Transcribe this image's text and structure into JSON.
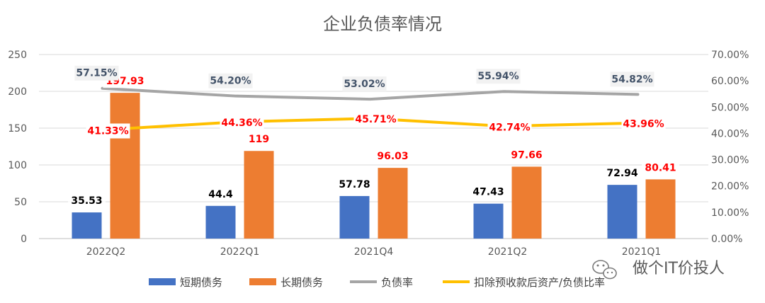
{
  "chart_data": {
    "type": "bar",
    "title": "企业负债率情况",
    "categories": [
      "2022Q2",
      "2022Q1",
      "2021Q4",
      "2021Q2",
      "2021Q1"
    ],
    "y_left": {
      "ylim": [
        0,
        250
      ],
      "ticks": [
        "0",
        "50",
        "100",
        "150",
        "200",
        "250"
      ]
    },
    "y_right": {
      "ylim": [
        0,
        70
      ],
      "ticks": [
        "0.00%",
        "10.00%",
        "20.00%",
        "30.00%",
        "40.00%",
        "50.00%",
        "60.00%",
        "70.00%"
      ]
    },
    "series": [
      {
        "name": "短期债务",
        "type": "bar",
        "axis": "left",
        "color": "#4472c4",
        "values": [
          35.53,
          44.4,
          57.78,
          47.43,
          72.94
        ],
        "labels": [
          "35.53",
          "44.4",
          "57.78",
          "47.43",
          "72.94"
        ]
      },
      {
        "name": "长期债务",
        "type": "bar",
        "axis": "left",
        "color": "#ed7d31",
        "values": [
          197.93,
          119,
          96.03,
          97.66,
          80.41
        ],
        "labels": [
          "197.93",
          "119",
          "96.03",
          "97.66",
          "80.41"
        ]
      },
      {
        "name": "负债率",
        "type": "line",
        "axis": "right",
        "color": "#a5a5a5",
        "values": [
          57.15,
          54.2,
          53.02,
          55.94,
          54.82
        ],
        "labels": [
          "57.15%",
          "54.20%",
          "53.02%",
          "55.94%",
          "54.82%"
        ]
      },
      {
        "name": "扣除预收款后资产/负债比率",
        "type": "line",
        "axis": "right",
        "color": "#ffc000",
        "values": [
          41.33,
          44.36,
          45.71,
          42.74,
          43.96
        ],
        "labels": [
          "41.33%",
          "44.36%",
          "45.71%",
          "42.74%",
          "43.96%"
        ]
      }
    ],
    "grid": true,
    "legend": "bottom"
  },
  "watermark": {
    "text": "做个IT价投人",
    "icon": "wechat-icon"
  }
}
